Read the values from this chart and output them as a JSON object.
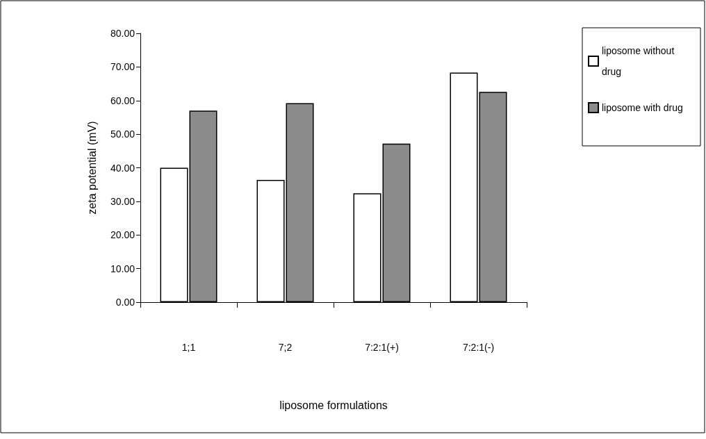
{
  "chart_data": {
    "type": "bar",
    "xlabel": "liposome formulations",
    "ylabel": "zeta potential (mV)",
    "categories": [
      "1;1",
      "7;2",
      "7:2:1(+)",
      "7:2:1(-)"
    ],
    "series": [
      {
        "name": "liposome without drug",
        "color": "#ffffff",
        "values": [
          40.0,
          36.4,
          32.4,
          68.3
        ]
      },
      {
        "name": "liposome with drug",
        "color": "#8c8c8c",
        "values": [
          57.0,
          59.2,
          47.2,
          62.6
        ]
      }
    ],
    "ylim": [
      0,
      80
    ],
    "yticks": [
      {
        "value": 0,
        "label": "0.00"
      },
      {
        "value": 10,
        "label": "10.00"
      },
      {
        "value": 20,
        "label": "20.00"
      },
      {
        "value": 30,
        "label": "30.00"
      },
      {
        "value": 40,
        "label": "40.00"
      },
      {
        "value": 50,
        "label": "50.00"
      },
      {
        "value": 60,
        "label": "60.00"
      },
      {
        "value": 70,
        "label": "70.00"
      },
      {
        "value": 80,
        "label": "80.00"
      }
    ],
    "grid": false,
    "legend": "right"
  }
}
